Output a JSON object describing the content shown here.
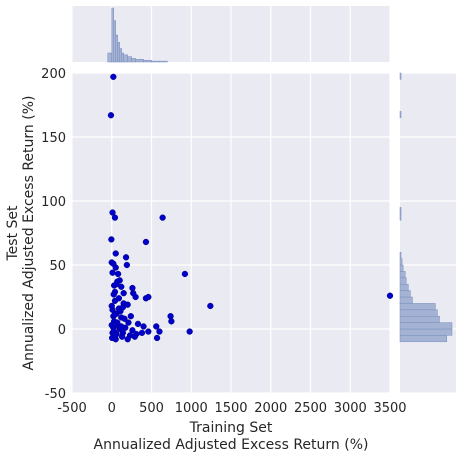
{
  "chart_data": {
    "type": "scatter",
    "title": "",
    "xlabel_line1": "Training Set",
    "xlabel_line2": "Annualized Adjusted Excess Return (%)",
    "ylabel_line1": "Test Set",
    "ylabel_line2": "Annualized Adjusted Excess Return (%)",
    "xlim": [
      -500,
      3500
    ],
    "ylim": [
      -50,
      200
    ],
    "xticks": [
      -500,
      0,
      500,
      1000,
      1500,
      2000,
      2500,
      3000,
      3500
    ],
    "yticks": [
      -50,
      0,
      50,
      100,
      150,
      200
    ],
    "grid": true,
    "colors": {
      "point": "#0000c8",
      "point_edge": "#00008a",
      "hist_fill": "#a4b3d3",
      "hist_edge": "#7a8fbf",
      "background": "#eaeaf2",
      "grid": "#ffffff"
    },
    "points": [
      [
        20,
        197
      ],
      [
        -10,
        167
      ],
      [
        10,
        91
      ],
      [
        40,
        87
      ],
      [
        640,
        87
      ],
      [
        430,
        68
      ],
      [
        -5,
        70
      ],
      [
        50,
        59
      ],
      [
        180,
        56
      ],
      [
        190,
        50
      ],
      [
        0,
        52
      ],
      [
        20,
        51
      ],
      [
        80,
        43
      ],
      [
        920,
        43
      ],
      [
        1240,
        18
      ],
      [
        3500,
        26
      ],
      [
        10,
        44
      ],
      [
        70,
        37
      ],
      [
        100,
        38
      ],
      [
        30,
        34
      ],
      [
        120,
        33
      ],
      [
        260,
        32
      ],
      [
        270,
        28
      ],
      [
        300,
        25
      ],
      [
        430,
        24
      ],
      [
        460,
        25
      ],
      [
        40,
        22
      ],
      [
        150,
        20
      ],
      [
        200,
        19
      ],
      [
        90,
        16
      ],
      [
        10,
        15
      ],
      [
        60,
        12
      ],
      [
        240,
        10
      ],
      [
        740,
        10
      ],
      [
        750,
        6
      ],
      [
        120,
        9
      ],
      [
        160,
        8
      ],
      [
        30,
        6
      ],
      [
        210,
        5
      ],
      [
        330,
        4
      ],
      [
        560,
        2
      ],
      [
        400,
        2
      ],
      [
        80,
        3
      ],
      [
        20,
        1
      ],
      [
        100,
        0
      ],
      [
        170,
        1
      ],
      [
        260,
        -1
      ],
      [
        460,
        -2
      ],
      [
        10,
        -3
      ],
      [
        60,
        -4
      ],
      [
        140,
        -3
      ],
      [
        230,
        -5
      ],
      [
        310,
        -4
      ],
      [
        380,
        -3
      ],
      [
        600,
        -2
      ],
      [
        980,
        -2
      ],
      [
        570,
        -7
      ],
      [
        5,
        -7
      ],
      [
        50,
        -8
      ],
      [
        130,
        -6
      ],
      [
        200,
        -8
      ],
      [
        290,
        -6
      ],
      [
        30,
        -2
      ],
      [
        70,
        5
      ],
      [
        110,
        14
      ],
      [
        150,
        28
      ],
      [
        40,
        29
      ],
      [
        0,
        18
      ],
      [
        20,
        10
      ],
      [
        50,
        48
      ],
      [
        90,
        24
      ],
      [
        120,
        2
      ],
      [
        140,
        17
      ],
      [
        60,
        35
      ],
      [
        25,
        27
      ],
      [
        45,
        -5
      ],
      [
        0,
        3
      ],
      [
        35,
        11
      ]
    ],
    "x_histogram": [
      {
        "x0": -50,
        "x1": 0,
        "count": 10
      },
      {
        "x0": 0,
        "x1": 25,
        "count": 60
      },
      {
        "x0": 25,
        "x1": 50,
        "count": 46
      },
      {
        "x0": 50,
        "x1": 75,
        "count": 30
      },
      {
        "x0": 75,
        "x1": 100,
        "count": 22
      },
      {
        "x0": 100,
        "x1": 125,
        "count": 15
      },
      {
        "x0": 125,
        "x1": 150,
        "count": 10
      },
      {
        "x0": 150,
        "x1": 200,
        "count": 8
      },
      {
        "x0": 200,
        "x1": 250,
        "count": 6
      },
      {
        "x0": 250,
        "x1": 300,
        "count": 4
      },
      {
        "x0": 300,
        "x1": 400,
        "count": 3
      },
      {
        "x0": 400,
        "x1": 500,
        "count": 2
      },
      {
        "x0": 500,
        "x1": 600,
        "count": 1
      },
      {
        "x0": 600,
        "x1": 700,
        "count": 1
      }
    ],
    "y_histogram": [
      {
        "y0": -10,
        "y1": -5,
        "count": 45
      },
      {
        "y0": -5,
        "y1": 0,
        "count": 50
      },
      {
        "y0": 0,
        "y1": 5,
        "count": 50
      },
      {
        "y0": 5,
        "y1": 10,
        "count": 38
      },
      {
        "y0": 10,
        "y1": 15,
        "count": 36
      },
      {
        "y0": 15,
        "y1": 20,
        "count": 34
      },
      {
        "y0": 20,
        "y1": 25,
        "count": 12
      },
      {
        "y0": 25,
        "y1": 30,
        "count": 10
      },
      {
        "y0": 30,
        "y1": 35,
        "count": 8
      },
      {
        "y0": 35,
        "y1": 40,
        "count": 6
      },
      {
        "y0": 40,
        "y1": 45,
        "count": 5
      },
      {
        "y0": 45,
        "y1": 50,
        "count": 3
      },
      {
        "y0": 50,
        "y1": 55,
        "count": 2
      },
      {
        "y0": 55,
        "y1": 60,
        "count": 1
      },
      {
        "y0": 85,
        "y1": 90,
        "count": 1
      },
      {
        "y0": 90,
        "y1": 95,
        "count": 1
      },
      {
        "y0": 165,
        "y1": 170,
        "count": 1
      },
      {
        "y0": 195,
        "y1": 200,
        "count": 1
      }
    ]
  }
}
